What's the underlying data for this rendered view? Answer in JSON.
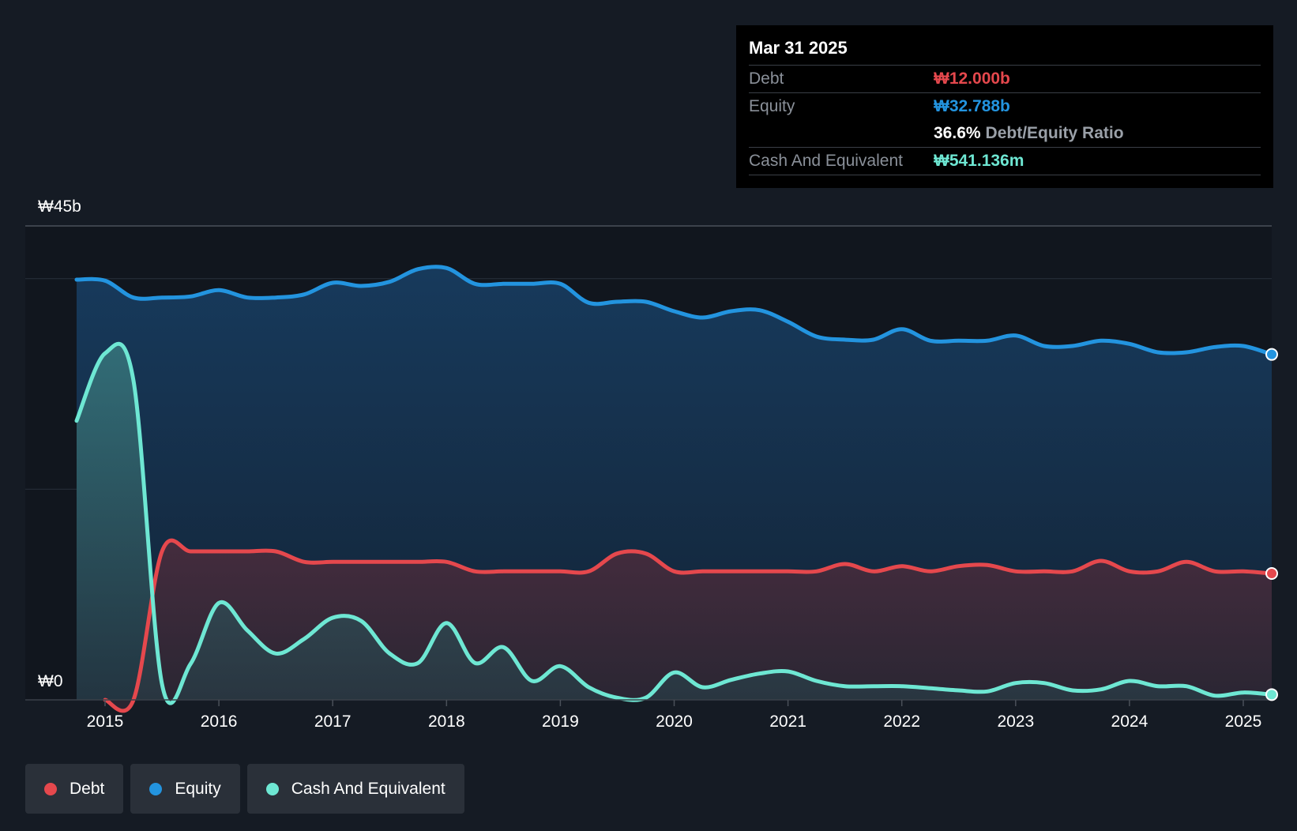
{
  "colors": {
    "debt": "#e5484d",
    "equity": "#2394df",
    "cash": "#6ee7d3",
    "background": "#151b24"
  },
  "tooltip": {
    "date": "Mar 31 2025",
    "debt_label": "Debt",
    "debt_value": "₩12.000b",
    "equity_label": "Equity",
    "equity_value": "₩32.788b",
    "ratio_value": "36.6%",
    "ratio_label": "Debt/Equity Ratio",
    "cash_label": "Cash And Equivalent",
    "cash_value": "₩541.136m"
  },
  "legend": {
    "debt": "Debt",
    "equity": "Equity",
    "cash": "Cash And Equivalent"
  },
  "chart_data": {
    "type": "area",
    "title": "",
    "y_top_label": "₩45b",
    "y_bottom_label": "₩0",
    "ylim": [
      0,
      45
    ],
    "xlim": [
      2014.7,
      2025.25
    ],
    "x_ticks": [
      2015,
      2016,
      2017,
      2018,
      2019,
      2020,
      2021,
      2022,
      2023,
      2024,
      2025
    ],
    "x_tick_labels": [
      "2015",
      "2016",
      "2017",
      "2018",
      "2019",
      "2020",
      "2021",
      "2022",
      "2023",
      "2024",
      "2025"
    ],
    "series": [
      {
        "name": "Equity",
        "key": "equity",
        "x": [
          2014.75,
          2015.0,
          2015.25,
          2015.5,
          2015.75,
          2016.0,
          2016.25,
          2016.5,
          2016.75,
          2017.0,
          2017.25,
          2017.5,
          2017.75,
          2018.0,
          2018.25,
          2018.5,
          2018.75,
          2019.0,
          2019.25,
          2019.5,
          2019.75,
          2020.0,
          2020.25,
          2020.5,
          2020.75,
          2021.0,
          2021.25,
          2021.5,
          2021.75,
          2022.0,
          2022.25,
          2022.5,
          2022.75,
          2023.0,
          2023.25,
          2023.5,
          2023.75,
          2024.0,
          2024.25,
          2024.5,
          2024.75,
          2025.0,
          2025.25
        ],
        "values": [
          39.9,
          39.8,
          38.2,
          38.2,
          38.3,
          38.9,
          38.2,
          38.2,
          38.5,
          39.6,
          39.3,
          39.7,
          40.9,
          41.0,
          39.5,
          39.5,
          39.5,
          39.5,
          37.7,
          37.8,
          37.8,
          36.9,
          36.3,
          36.9,
          37.0,
          35.9,
          34.5,
          34.2,
          34.2,
          35.2,
          34.1,
          34.1,
          34.1,
          34.6,
          33.6,
          33.6,
          34.1,
          33.8,
          33.0,
          33.0,
          33.5,
          33.6,
          32.8
        ]
      },
      {
        "name": "Debt",
        "key": "debt",
        "x": [
          2015.0,
          2015.25,
          2015.5,
          2015.75,
          2016.0,
          2016.25,
          2016.5,
          2016.75,
          2017.0,
          2017.25,
          2017.5,
          2017.75,
          2018.0,
          2018.25,
          2018.5,
          2018.75,
          2019.0,
          2019.25,
          2019.5,
          2019.75,
          2020.0,
          2020.25,
          2020.5,
          2020.75,
          2021.0,
          2021.25,
          2021.5,
          2021.75,
          2022.0,
          2022.25,
          2022.5,
          2022.75,
          2023.0,
          2023.25,
          2023.5,
          2023.75,
          2024.0,
          2024.25,
          2024.5,
          2024.75,
          2025.0,
          2025.25
        ],
        "values": [
          0.0,
          0.0,
          14.1,
          14.1,
          14.1,
          14.1,
          14.1,
          13.1,
          13.1,
          13.1,
          13.1,
          13.1,
          13.1,
          12.2,
          12.2,
          12.2,
          12.2,
          12.2,
          13.9,
          13.9,
          12.2,
          12.2,
          12.2,
          12.2,
          12.2,
          12.2,
          12.9,
          12.2,
          12.7,
          12.2,
          12.7,
          12.8,
          12.2,
          12.2,
          12.2,
          13.2,
          12.2,
          12.2,
          13.1,
          12.2,
          12.2,
          12.0
        ]
      },
      {
        "name": "Cash And Equivalent",
        "key": "cash",
        "x": [
          2014.75,
          2015.0,
          2015.25,
          2015.5,
          2015.75,
          2016.0,
          2016.25,
          2016.5,
          2016.75,
          2017.0,
          2017.25,
          2017.5,
          2017.75,
          2018.0,
          2018.25,
          2018.5,
          2018.75,
          2019.0,
          2019.25,
          2019.5,
          2019.75,
          2020.0,
          2020.25,
          2020.5,
          2020.75,
          2021.0,
          2021.25,
          2021.5,
          2021.75,
          2022.0,
          2022.25,
          2022.5,
          2022.75,
          2023.0,
          2023.25,
          2023.5,
          2023.75,
          2024.0,
          2024.25,
          2024.5,
          2024.75,
          2025.0,
          2025.25
        ],
        "values": [
          26.5,
          32.9,
          30.3,
          1.5,
          3.4,
          9.2,
          6.6,
          4.4,
          5.8,
          7.8,
          7.5,
          4.4,
          3.5,
          7.3,
          3.5,
          5.0,
          1.8,
          3.2,
          1.2,
          0.2,
          0.2,
          2.6,
          1.2,
          1.9,
          2.5,
          2.7,
          1.8,
          1.3,
          1.3,
          1.3,
          1.1,
          0.9,
          0.8,
          1.6,
          1.6,
          0.9,
          1.0,
          1.8,
          1.3,
          1.3,
          0.4,
          0.7,
          0.5
        ]
      }
    ]
  }
}
